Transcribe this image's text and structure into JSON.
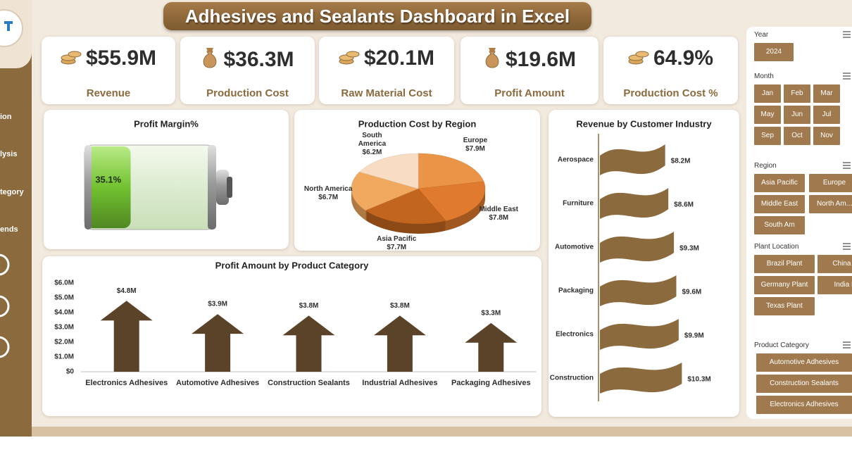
{
  "header": {
    "title": "Adhesives and Sealants Dashboard in Excel"
  },
  "sidebar": {
    "nav": [
      "ion",
      "lysis",
      "tegory",
      "ends"
    ]
  },
  "kpis": [
    {
      "value": "$55.9M",
      "label": "Revenue"
    },
    {
      "value": "$36.3M",
      "label": "Production Cost"
    },
    {
      "value": "$20.1M",
      "label": "Raw Material Cost"
    },
    {
      "value": "$19.6M",
      "label": "Profit Amount"
    },
    {
      "value": "64.9%",
      "label": "Production Cost %"
    }
  ],
  "chart_data": [
    {
      "type": "battery",
      "title": "Profit Margin%",
      "values": [
        35.1
      ],
      "value_labels": [
        "35.1%"
      ],
      "ylim": [
        0,
        100
      ],
      "color": "#72c230"
    },
    {
      "type": "pie",
      "title": "Production Cost by Region",
      "categories": [
        "Europe",
        "Middle East",
        "Asia Pacific",
        "North America",
        "South America"
      ],
      "values": [
        7.9,
        7.8,
        7.7,
        6.7,
        6.2
      ],
      "value_labels": [
        "$7.9M",
        "$7.8M",
        "$7.7M",
        "$6.7M",
        "$6.2M"
      ],
      "colors": [
        "#ea9448",
        "#e07a2e",
        "#c2661f",
        "#f1a95f",
        "#f8dcc4"
      ]
    },
    {
      "type": "flagbar",
      "title": "Revenue by Customer Industry",
      "categories": [
        "Aerospace",
        "Furniture",
        "Automotive",
        "Packaging",
        "Electronics",
        "Construction"
      ],
      "values": [
        8.2,
        8.6,
        9.3,
        9.6,
        9.9,
        10.3
      ],
      "value_labels": [
        "$8.2M",
        "$8.6M",
        "$9.3M",
        "$9.6M",
        "$9.9M",
        "$10.3M"
      ],
      "color": "#8b6a3e"
    },
    {
      "type": "arrowbar",
      "title": "Profit Amount by Product Category",
      "categories": [
        "Electronics Adhesives",
        "Automotive Adhesives",
        "Construction Sealants",
        "Industrial Adhesives",
        "Packaging Adhesives"
      ],
      "values": [
        4.8,
        3.9,
        3.8,
        3.8,
        3.3
      ],
      "value_labels": [
        "$4.8M",
        "$3.9M",
        "$3.8M",
        "$3.8M",
        "$3.3M"
      ],
      "ylim": [
        0,
        6
      ],
      "yticks": [
        {
          "value": 0,
          "label": "$0"
        },
        {
          "value": 1,
          "label": "$1.0M"
        },
        {
          "value": 2,
          "label": "$2.0M"
        },
        {
          "value": 3,
          "label": "$3.0M"
        },
        {
          "value": 4,
          "label": "$4.0M"
        },
        {
          "value": 5,
          "label": "$5.0M"
        },
        {
          "value": 6,
          "label": "$6.0M"
        }
      ],
      "grid": false,
      "color": "#5a4328"
    }
  ],
  "slicers": [
    {
      "title": "Year",
      "items": [
        "2024"
      ]
    },
    {
      "title": "Month",
      "items": [
        "Jan",
        "Feb",
        "Mar",
        "May",
        "Jun",
        "Jul",
        "Sep",
        "Oct",
        "Nov"
      ]
    },
    {
      "title": "Region",
      "items": [
        "Asia Pacific",
        "Europe",
        "Middle East",
        "North Am...",
        "South Am"
      ]
    },
    {
      "title": "Plant Location",
      "items": [
        "Brazil Plant",
        "China Pla",
        "Germany Plant",
        "India Pla",
        "Texas Plant"
      ]
    },
    {
      "title": "Product Category",
      "items": [
        "Automotive Adhesives",
        "Construction Sealants",
        "Electronics Adhesives"
      ]
    }
  ]
}
